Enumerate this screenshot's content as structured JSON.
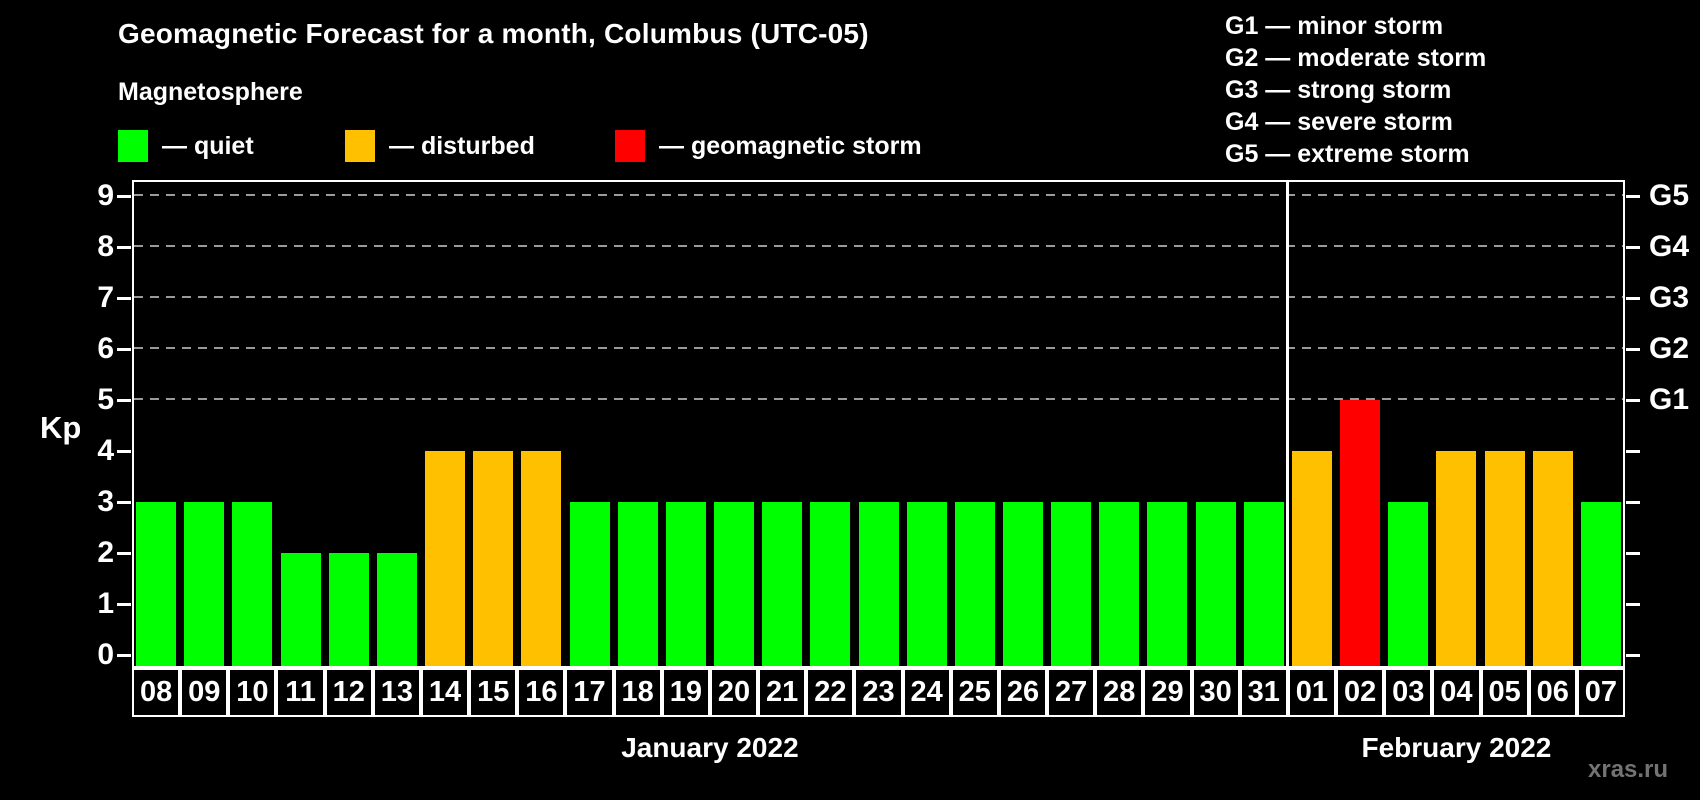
{
  "header": {
    "title": "Geomagnetic Forecast for a month, Columbus (UTC-05)",
    "subtitle": "Magnetosphere"
  },
  "legend": {
    "items": [
      {
        "key": "quiet",
        "label": "— quiet",
        "color": "#00ff00"
      },
      {
        "key": "disturbed",
        "label": "— disturbed",
        "color": "#ffc000"
      },
      {
        "key": "storm",
        "label": "— geomagnetic storm",
        "color": "#ff0000"
      }
    ]
  },
  "g_scale_legend": {
    "items": [
      "G1 — minor storm",
      "G2 — moderate storm",
      "G3 — strong storm",
      "G4 — severe storm",
      "G5 — extreme storm"
    ]
  },
  "watermark": "xras.ru",
  "chart_data": {
    "type": "bar",
    "title": "Geomagnetic Forecast for a month, Columbus (UTC-05)",
    "subtitle": "Magnetosphere",
    "ylabel": "Kp",
    "ylim": [
      0,
      9.4
    ],
    "y_ticks": [
      0,
      1,
      2,
      3,
      4,
      5,
      6,
      7,
      8,
      9
    ],
    "grid_kp": [
      5,
      6,
      7,
      8,
      9
    ],
    "grid_style": "dashed-gray",
    "right_axis": [
      {
        "kp": 5,
        "label": "G1"
      },
      {
        "kp": 6,
        "label": "G2"
      },
      {
        "kp": 7,
        "label": "G3"
      },
      {
        "kp": 8,
        "label": "G4"
      },
      {
        "kp": 9,
        "label": "G5"
      }
    ],
    "colors": {
      "quiet": "#00ff00",
      "disturbed": "#ffc000",
      "storm": "#ff0000"
    },
    "months": [
      {
        "label": "January 2022",
        "start": 0,
        "count": 24
      },
      {
        "label": "February 2022",
        "start": 24,
        "count": 7
      }
    ],
    "days": [
      {
        "day": "08",
        "kp": 3,
        "status": "quiet"
      },
      {
        "day": "09",
        "kp": 3,
        "status": "quiet"
      },
      {
        "day": "10",
        "kp": 3,
        "status": "quiet"
      },
      {
        "day": "11",
        "kp": 2,
        "status": "quiet"
      },
      {
        "day": "12",
        "kp": 2,
        "status": "quiet"
      },
      {
        "day": "13",
        "kp": 2,
        "status": "quiet"
      },
      {
        "day": "14",
        "kp": 4,
        "status": "disturbed"
      },
      {
        "day": "15",
        "kp": 4,
        "status": "disturbed"
      },
      {
        "day": "16",
        "kp": 4,
        "status": "disturbed"
      },
      {
        "day": "17",
        "kp": 3,
        "status": "quiet"
      },
      {
        "day": "18",
        "kp": 3,
        "status": "quiet"
      },
      {
        "day": "19",
        "kp": 3,
        "status": "quiet"
      },
      {
        "day": "20",
        "kp": 3,
        "status": "quiet"
      },
      {
        "day": "21",
        "kp": 3,
        "status": "quiet"
      },
      {
        "day": "22",
        "kp": 3,
        "status": "quiet"
      },
      {
        "day": "23",
        "kp": 3,
        "status": "quiet"
      },
      {
        "day": "24",
        "kp": 3,
        "status": "quiet"
      },
      {
        "day": "25",
        "kp": 3,
        "status": "quiet"
      },
      {
        "day": "26",
        "kp": 3,
        "status": "quiet"
      },
      {
        "day": "27",
        "kp": 3,
        "status": "quiet"
      },
      {
        "day": "28",
        "kp": 3,
        "status": "quiet"
      },
      {
        "day": "29",
        "kp": 3,
        "status": "quiet"
      },
      {
        "day": "30",
        "kp": 3,
        "status": "quiet"
      },
      {
        "day": "31",
        "kp": 3,
        "status": "quiet"
      },
      {
        "day": "01",
        "kp": 4,
        "status": "disturbed"
      },
      {
        "day": "02",
        "kp": 5,
        "status": "storm"
      },
      {
        "day": "03",
        "kp": 3,
        "status": "quiet"
      },
      {
        "day": "04",
        "kp": 4,
        "status": "disturbed"
      },
      {
        "day": "05",
        "kp": 4,
        "status": "disturbed"
      },
      {
        "day": "06",
        "kp": 4,
        "status": "disturbed"
      },
      {
        "day": "07",
        "kp": 3,
        "status": "quiet"
      }
    ]
  }
}
